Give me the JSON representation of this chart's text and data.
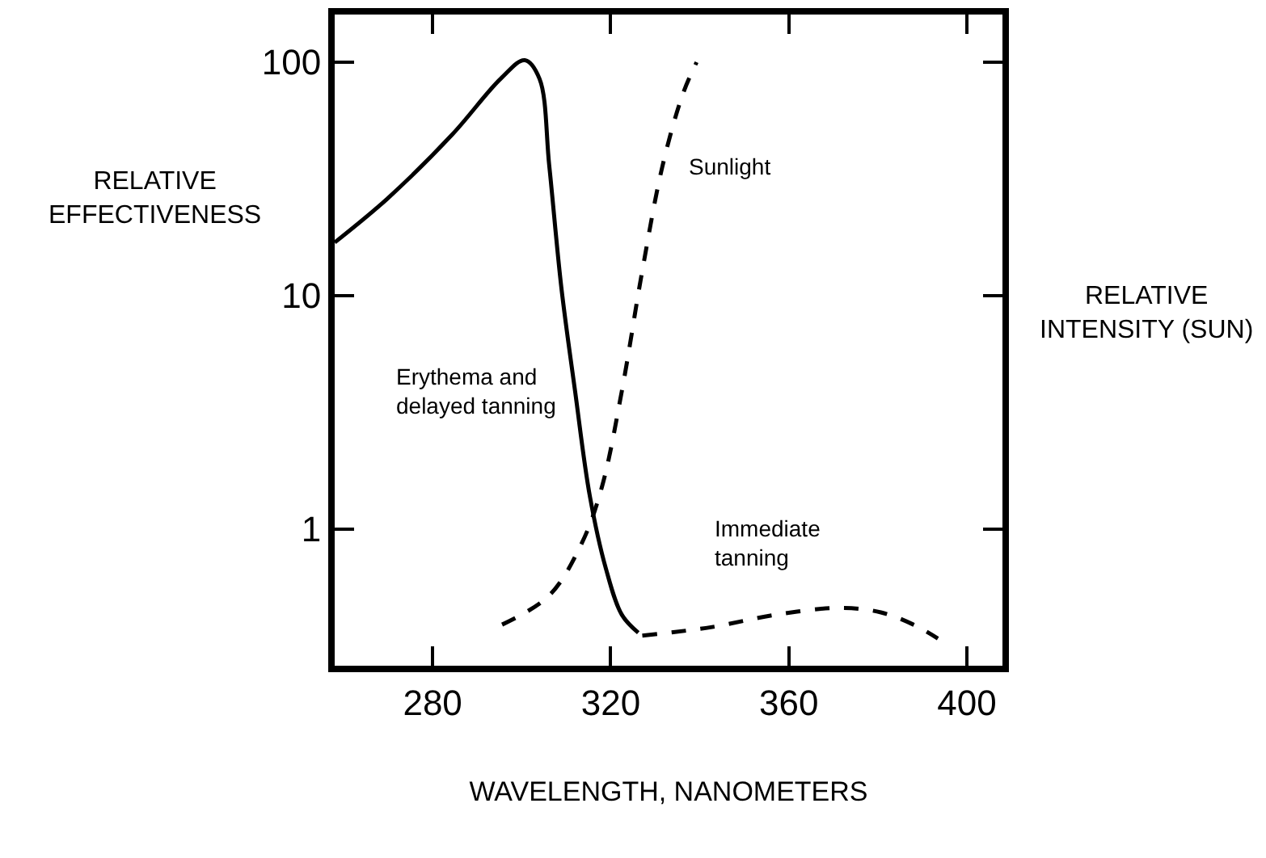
{
  "chart_data": {
    "type": "line",
    "xlabel": "WAVELENGTH, NANOMETERS",
    "ylabel": "RELATIVE\nEFFECTIVENESS",
    "y2label": "RELATIVE\nINTENSITY (SUN)",
    "log": "y",
    "xlim": [
      258,
      408
    ],
    "xticks": [
      280,
      320,
      360,
      400
    ],
    "ylim": [
      0.26,
      160
    ],
    "yticks": [
      1,
      10,
      100
    ],
    "legend": false,
    "marker": "none",
    "series": [
      {
        "name": "Erythema and\ndelayed tanning",
        "color": "#000000",
        "line_style": "solid",
        "x": [
          258,
          269.8,
          284.4,
          295.3,
          300.7,
          304,
          306.2,
          308.9,
          312,
          315.3,
          318.9,
          322.5,
          326.2
        ],
        "values": [
          16.9,
          26,
          49,
          85,
          102,
          85,
          36,
          10.9,
          3.9,
          1.39,
          0.68,
          0.43,
          0.36
        ]
      },
      {
        "name": "Sunlight",
        "color": "#000000",
        "line_style": "dashed",
        "x": [
          295.6,
          306.2,
          313.5,
          318,
          322.5,
          327.1,
          331.6,
          336.2,
          339.3
        ],
        "values": [
          0.39,
          0.52,
          0.87,
          1.51,
          3.9,
          12.8,
          35.7,
          73,
          100
        ]
      },
      {
        "name": "Immediate\ntanning",
        "color": "#000000",
        "line_style": "dashed",
        "x": [
          327.1,
          342.5,
          357.1,
          371.6,
          380.7,
          388,
          393.5
        ],
        "values": [
          0.35,
          0.38,
          0.43,
          0.46,
          0.44,
          0.39,
          0.34
        ]
      }
    ]
  }
}
